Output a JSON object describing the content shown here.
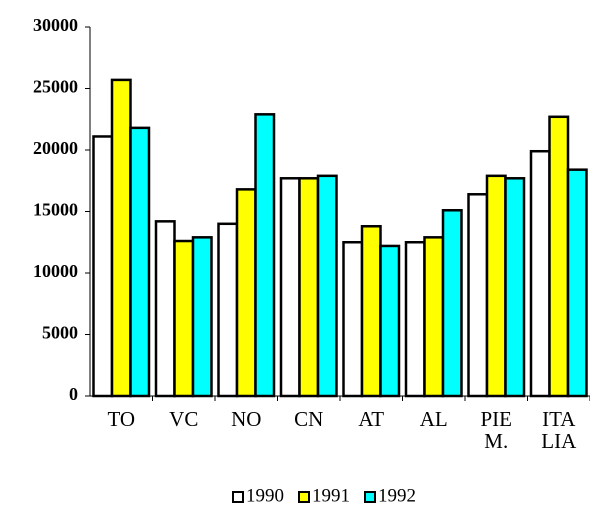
{
  "chart_data": {
    "type": "bar",
    "categories": [
      "TO",
      "VC",
      "NO",
      "CN",
      "AT",
      "AL",
      "PIE M.",
      "ITA LIA"
    ],
    "series": [
      {
        "name": "1990",
        "color": "#ffffff",
        "values": [
          21100,
          14200,
          14000,
          17700,
          12500,
          12500,
          16400,
          19900
        ]
      },
      {
        "name": "1991",
        "color": "#ffff00",
        "values": [
          25700,
          12600,
          16800,
          17700,
          13800,
          12900,
          17900,
          22700
        ]
      },
      {
        "name": "1992",
        "color": "#00ffff",
        "values": [
          21800,
          12900,
          22900,
          17900,
          12200,
          15100,
          17700,
          18400
        ]
      }
    ],
    "ylim": [
      0,
      30000
    ],
    "yticks": [
      0,
      5000,
      10000,
      15000,
      20000,
      25000,
      30000
    ],
    "legend": "bottom"
  }
}
